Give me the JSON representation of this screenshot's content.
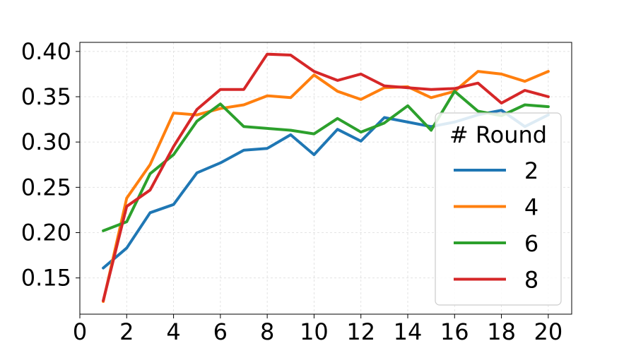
{
  "chart_data": {
    "type": "line",
    "title": "",
    "xlabel": "",
    "ylabel": "",
    "x": [
      1,
      2,
      3,
      4,
      5,
      6,
      7,
      8,
      9,
      10,
      11,
      12,
      13,
      14,
      15,
      16,
      17,
      18,
      19,
      20
    ],
    "xlim": [
      0,
      21
    ],
    "ylim": [
      0.11,
      0.41
    ],
    "x_ticks": [
      0,
      2,
      4,
      6,
      8,
      10,
      12,
      14,
      16,
      18,
      20
    ],
    "y_ticks": [
      0.15,
      0.2,
      0.25,
      0.3,
      0.35,
      0.4
    ],
    "x_tick_labels": [
      "0",
      "2",
      "4",
      "6",
      "8",
      "10",
      "12",
      "14",
      "16",
      "18",
      "20"
    ],
    "y_tick_labels": [
      "0.15",
      "0.20",
      "0.25",
      "0.30",
      "0.35",
      "0.40"
    ],
    "grid": true,
    "legend": {
      "title": "# Round",
      "placement": "center-right"
    },
    "series": [
      {
        "name": "2",
        "color": "#1f77b4",
        "values": [
          0.161,
          0.183,
          0.222,
          0.231,
          0.266,
          0.277,
          0.291,
          0.293,
          0.308,
          0.286,
          0.314,
          0.301,
          0.327,
          0.322,
          0.317,
          0.322,
          0.33,
          0.335,
          0.317,
          0.33
        ]
      },
      {
        "name": "4",
        "color": "#ff7f0e",
        "values": [
          0.124,
          0.238,
          0.275,
          0.332,
          0.33,
          0.337,
          0.341,
          0.351,
          0.349,
          0.374,
          0.356,
          0.347,
          0.36,
          0.361,
          0.349,
          0.356,
          0.378,
          0.375,
          0.367,
          0.378
        ]
      },
      {
        "name": "6",
        "color": "#2ca02c",
        "values": [
          0.202,
          0.212,
          0.265,
          0.286,
          0.323,
          0.342,
          0.317,
          0.315,
          0.313,
          0.309,
          0.326,
          0.311,
          0.321,
          0.34,
          0.313,
          0.356,
          0.334,
          0.329,
          0.341,
          0.339
        ]
      },
      {
        "name": "8",
        "color": "#d62728",
        "values": [
          0.125,
          0.229,
          0.247,
          0.295,
          0.336,
          0.358,
          0.358,
          0.397,
          0.396,
          0.378,
          0.368,
          0.375,
          0.362,
          0.36,
          0.358,
          0.359,
          0.365,
          0.343,
          0.357,
          0.35
        ]
      }
    ]
  }
}
